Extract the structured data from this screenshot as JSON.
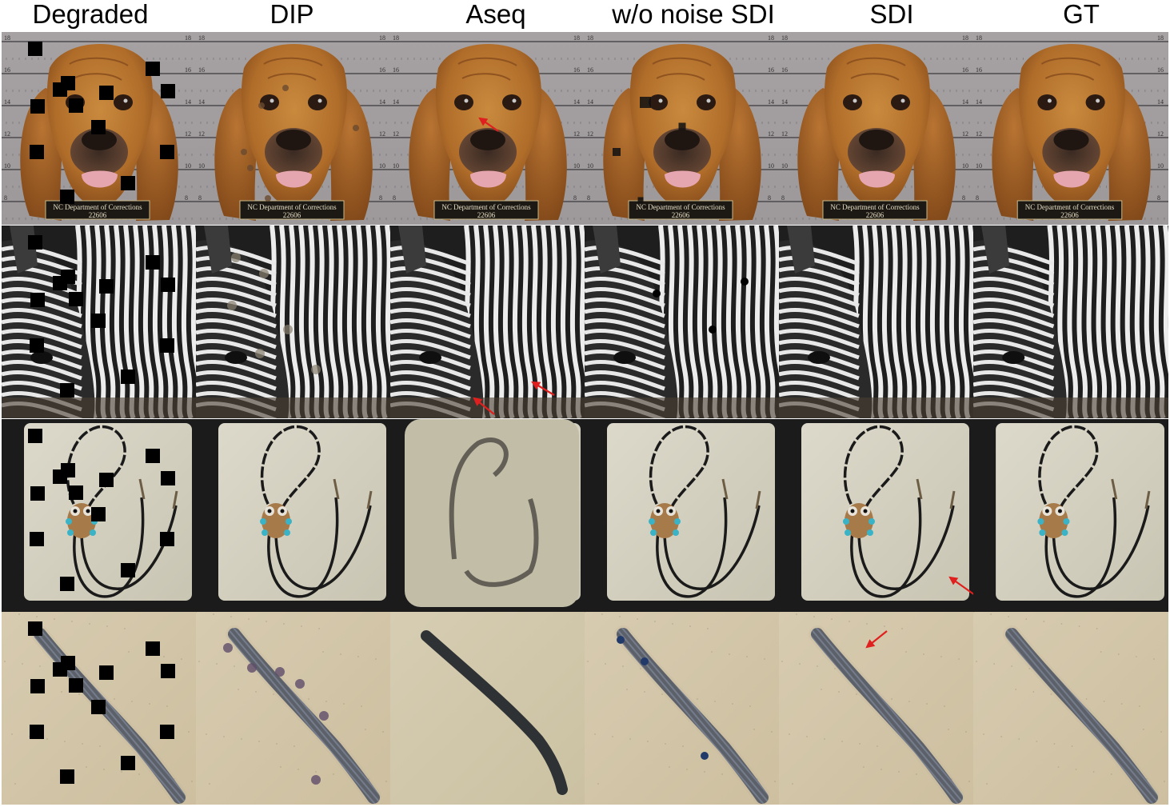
{
  "columns": [
    {
      "id": "degraded",
      "label": "Degraded"
    },
    {
      "id": "dip",
      "label": "DIP"
    },
    {
      "id": "aseq",
      "label": "Aseq"
    },
    {
      "id": "wo_noise_sdi",
      "label": "w/o noise SDI"
    },
    {
      "id": "sdi",
      "label": "SDI"
    },
    {
      "id": "gt",
      "label": "GT"
    }
  ],
  "rows": [
    {
      "id": "bloodhound",
      "subject": "dog",
      "placard_line1": "NC Department of Corrections",
      "placard_line2": "22606",
      "ruler_left": [
        "18",
        "16",
        "14",
        "12",
        "10",
        "8"
      ],
      "ruler_right": [
        "18",
        "16",
        "14",
        "12",
        "10",
        "8"
      ]
    },
    {
      "id": "zebra",
      "subject": "zebra"
    },
    {
      "id": "bolo_tie",
      "subject": "bolo-tie"
    },
    {
      "id": "millipede",
      "subject": "millipede"
    }
  ],
  "arrows": [
    {
      "row": "bloodhound",
      "column": "aseq"
    },
    {
      "row": "zebra",
      "column": "aseq"
    },
    {
      "row": "zebra",
      "column": "aseq"
    },
    {
      "row": "bolo_tie",
      "column": "sdi"
    },
    {
      "row": "millipede",
      "column": "sdi"
    }
  ],
  "colors": {
    "arrow": "#e0201e",
    "mask": "#000000"
  }
}
